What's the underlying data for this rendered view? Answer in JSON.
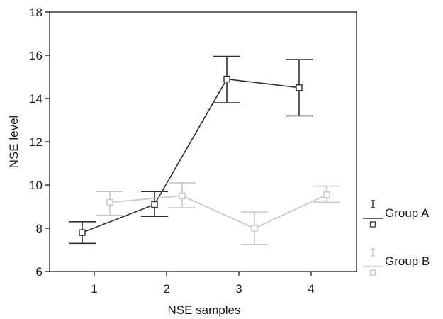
{
  "chart_data": {
    "type": "line",
    "title": "",
    "xlabel": "NSE samples",
    "ylabel": "NSE level",
    "categories": [
      "1",
      "2",
      "3",
      "4"
    ],
    "ylim": [
      6,
      18
    ],
    "yticks": [
      6,
      8,
      10,
      12,
      14,
      16,
      18
    ],
    "grid": false,
    "legend_position": "right",
    "series": [
      {
        "name": "Group A",
        "color": "#303030",
        "values": [
          7.8,
          9.1,
          14.9,
          14.5
        ],
        "error_low": [
          7.3,
          8.55,
          13.8,
          13.2
        ],
        "error_high": [
          8.3,
          9.7,
          15.95,
          15.8
        ]
      },
      {
        "name": "Group B",
        "color": "#c6c6c6",
        "values": [
          9.2,
          9.5,
          8.0,
          9.55
        ],
        "error_low": [
          8.6,
          8.95,
          7.25,
          9.2
        ],
        "error_high": [
          9.7,
          10.1,
          8.75,
          9.95
        ]
      }
    ]
  }
}
